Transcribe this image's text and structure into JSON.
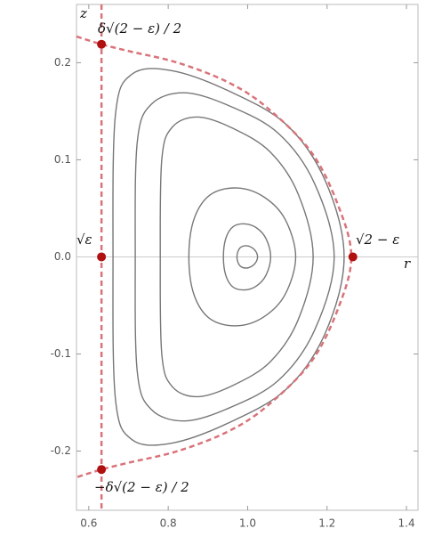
{
  "chart_data": {
    "type": "contour",
    "xlabel": "r",
    "ylabel": "z",
    "xlim": [
      0.569,
      1.429
    ],
    "ylim": [
      -0.261,
      0.26
    ],
    "xticks": [
      0.6,
      0.8,
      {
        "value": 1,
        "label": "1.0"
      },
      1.2,
      1.4
    ],
    "yticks": [
      -0.2,
      -0.1,
      {
        "value": 0,
        "label": "0.0"
      },
      0.1,
      0.2
    ],
    "contour_color": "#777777",
    "contours": [
      {
        "r": [
          1.243,
          1.196,
          1.098,
          0.952,
          0.807,
          0.708,
          0.667,
          0.661,
          0.667,
          0.708,
          0.807,
          0.952,
          1.098,
          1.196
        ],
        "z": [
          0,
          0.078,
          0.136,
          0.171,
          0.192,
          0.188,
          0.146,
          0,
          -0.146,
          -0.188,
          -0.192,
          -0.171,
          -0.136,
          -0.078
        ]
      },
      {
        "r": [
          1.218,
          1.168,
          1.078,
          0.957,
          0.842,
          0.757,
          0.722,
          0.717,
          0.722,
          0.757,
          0.842,
          0.957,
          1.078,
          1.168
        ],
        "z": [
          0,
          0.076,
          0.127,
          0.155,
          0.169,
          0.157,
          0.118,
          0,
          -0.118,
          -0.157,
          -0.169,
          -0.155,
          -0.127,
          -0.076
        ]
      },
      {
        "r": [
          1.165,
          1.127,
          1.057,
          0.965,
          0.876,
          0.811,
          0.784,
          0.78,
          0.784,
          0.811,
          0.876,
          0.965,
          1.057,
          1.127
        ],
        "z": [
          0,
          0.065,
          0.108,
          0.132,
          0.144,
          0.134,
          0.101,
          0,
          -0.101,
          -0.134,
          -0.144,
          -0.132,
          -0.108,
          -0.065
        ]
      },
      {
        "r": [
          1.121,
          1.094,
          1.04,
          0.973,
          0.906,
          0.865,
          0.852,
          0.865,
          0.906,
          0.973,
          1.04,
          1.094
        ],
        "z": [
          0,
          0.039,
          0.062,
          0.071,
          0.064,
          0.039,
          0,
          -0.039,
          -0.064,
          -0.071,
          -0.062,
          -0.039
        ]
      },
      {
        "r": [
          1.058,
          1.046,
          1.022,
          0.993,
          0.963,
          0.945,
          0.939,
          0.945,
          0.963,
          0.993,
          1.022,
          1.046
        ],
        "z": [
          0,
          0.019,
          0.03,
          0.034,
          0.031,
          0.019,
          0,
          -0.019,
          -0.031,
          -0.034,
          -0.03,
          -0.019
        ]
      },
      {
        "r": [
          1.025,
          1.02,
          1.009,
          0.996,
          0.983,
          0.976,
          0.973,
          0.976,
          0.983,
          0.996,
          1.009,
          1.02
        ],
        "z": [
          0,
          0.006,
          0.01,
          0.0115,
          0.01,
          0.006,
          0,
          -0.006,
          -0.01,
          -0.0115,
          -0.01,
          -0.006
        ]
      }
    ],
    "separatrix_color": "#d9737a",
    "separatrix": {
      "r": [
        0.569,
        0.632,
        0.7,
        0.824,
        0.95,
        1.048,
        1.16,
        1.228,
        1.261,
        1.228,
        1.16,
        1.048,
        0.95,
        0.824,
        0.7,
        0.632,
        0.569
      ],
      "z": [
        0.227,
        0.219,
        0.212,
        0.2,
        0.18,
        0.154,
        0.108,
        0.053,
        0,
        -0.053,
        -0.108,
        -0.154,
        -0.18,
        -0.2,
        -0.212,
        -0.219,
        -0.227
      ]
    },
    "vline": 0.632,
    "point_color": "#b01010",
    "points": {
      "r": [
        0.632,
        0.632,
        1.265,
        0.632
      ],
      "z": [
        0.219,
        0,
        0,
        -0.219
      ]
    },
    "annotations": [
      "δ√(2 − ε) / 2",
      "√ε",
      "√2 − ε",
      "−δ√(2 − ε) / 2"
    ]
  }
}
